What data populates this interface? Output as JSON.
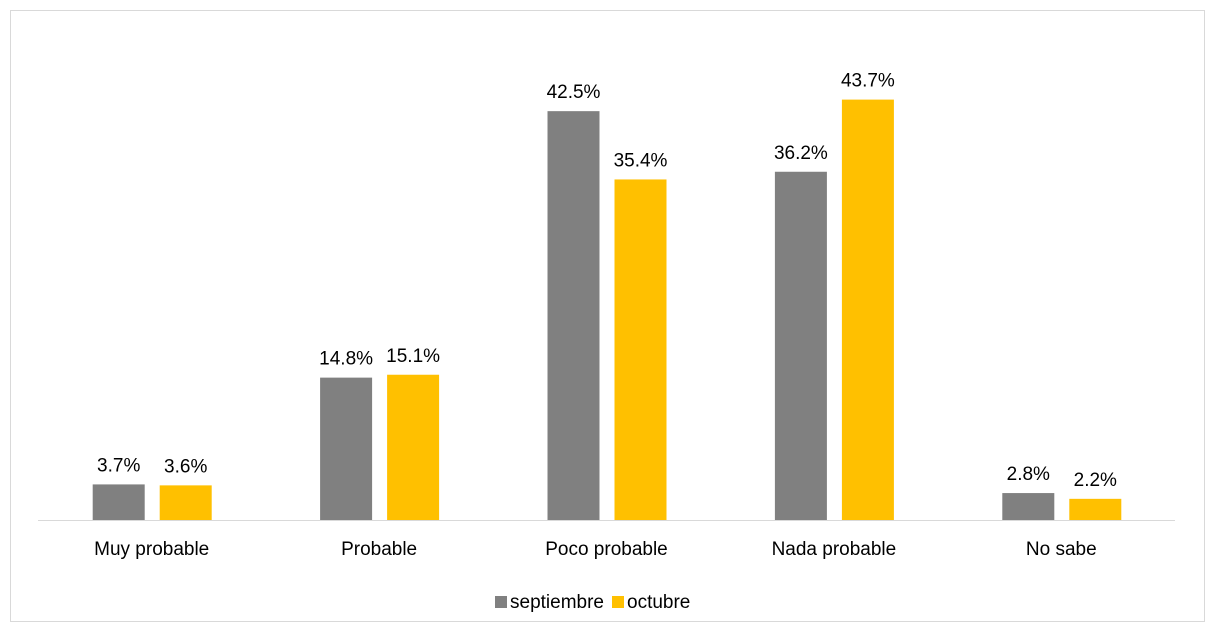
{
  "chart_data": {
    "type": "bar",
    "categories": [
      "Muy probable",
      "Probable",
      "Poco probable",
      "Nada probable",
      "No sabe"
    ],
    "series": [
      {
        "name": "septiembre",
        "color": "#808080",
        "values": [
          3.7,
          14.8,
          42.5,
          36.2,
          2.8
        ],
        "value_labels": [
          "3.7%",
          "14.8%",
          "42.5%",
          "36.2%",
          "2.8%"
        ]
      },
      {
        "name": "octubre",
        "color": "#ffc000",
        "values": [
          3.6,
          15.1,
          35.4,
          43.7,
          2.2
        ],
        "value_labels": [
          "3.6%",
          "15.1%",
          "35.4%",
          "43.7%",
          "2.2%"
        ]
      }
    ],
    "legend": "bottom"
  }
}
